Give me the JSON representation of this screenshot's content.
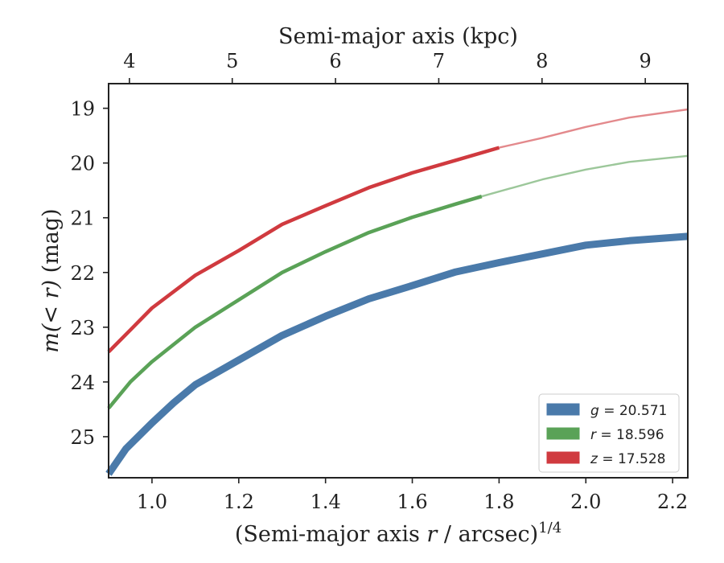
{
  "chart_data": {
    "type": "line",
    "xlabel_pre": "(Semi-major axis ",
    "xlabel_var": "r",
    "xlabel_post": " / arcsec)",
    "xlabel_sup": "1/4",
    "ylabel_pre": "m",
    "ylabel_mid": "(< r)",
    "ylabel_post": " (mag)",
    "top_xlabel": "Semi-major axis (kpc)",
    "xlim": [
      0.9,
      2.235
    ],
    "ylim": [
      25.75,
      18.55
    ],
    "y_inverted": true,
    "x_ticks": [
      1.0,
      1.2,
      1.4,
      1.6,
      1.8,
      2.0,
      2.2
    ],
    "x_tick_labels": [
      "1.0",
      "1.2",
      "1.4",
      "1.6",
      "1.8",
      "2.0",
      "2.2"
    ],
    "y_ticks": [
      19,
      20,
      21,
      22,
      23,
      24,
      25
    ],
    "y_tick_labels": [
      "19",
      "20",
      "21",
      "22",
      "23",
      "24",
      "25"
    ],
    "top_ticks_kpc": [
      4,
      5,
      6,
      7,
      8,
      9
    ],
    "top_tick_labels": [
      "4",
      "5",
      "6",
      "7",
      "8",
      "9"
    ],
    "top_tick_x_positions": [
      0.948,
      1.185,
      1.423,
      1.661,
      1.899,
      2.137
    ],
    "grid": false,
    "legend_position": "lower-right",
    "series": [
      {
        "name_var": "g",
        "name_value": " = 20.571",
        "color": "#4a7aaa",
        "band_width": "thick",
        "x": [
          0.9,
          0.94,
          1.0,
          1.05,
          1.1,
          1.2,
          1.3,
          1.4,
          1.5,
          1.6,
          1.7,
          1.8,
          1.9,
          2.0,
          2.1,
          2.235
        ],
        "y": [
          25.68,
          25.22,
          24.75,
          24.38,
          24.05,
          23.6,
          23.15,
          22.8,
          22.48,
          22.24,
          21.99,
          21.82,
          21.66,
          21.5,
          21.42,
          21.34
        ],
        "solid_until": 2.235
      },
      {
        "name_var": "r",
        "name_value": " = 18.596",
        "color": "#5aa257",
        "band_width": "thin",
        "x": [
          0.9,
          0.95,
          1.0,
          1.1,
          1.2,
          1.3,
          1.4,
          1.5,
          1.6,
          1.7,
          1.76,
          1.9,
          2.0,
          2.1,
          2.235
        ],
        "y": [
          24.48,
          24.0,
          23.63,
          23.0,
          22.5,
          22.0,
          21.62,
          21.27,
          20.99,
          20.75,
          20.61,
          20.3,
          20.12,
          19.98,
          19.87
        ],
        "solid_until": 1.76
      },
      {
        "name_var": "z",
        "name_value": " = 17.528",
        "color": "#d03a3f",
        "band_width": "thin",
        "x": [
          0.9,
          0.95,
          1.0,
          1.1,
          1.2,
          1.3,
          1.4,
          1.5,
          1.6,
          1.7,
          1.8,
          1.9,
          2.0,
          2.1,
          2.235
        ],
        "y": [
          23.45,
          23.05,
          22.65,
          22.05,
          21.6,
          21.12,
          20.78,
          20.45,
          20.18,
          19.95,
          19.72,
          19.54,
          19.34,
          19.17,
          19.02
        ],
        "solid_until": 1.895
      }
    ]
  }
}
